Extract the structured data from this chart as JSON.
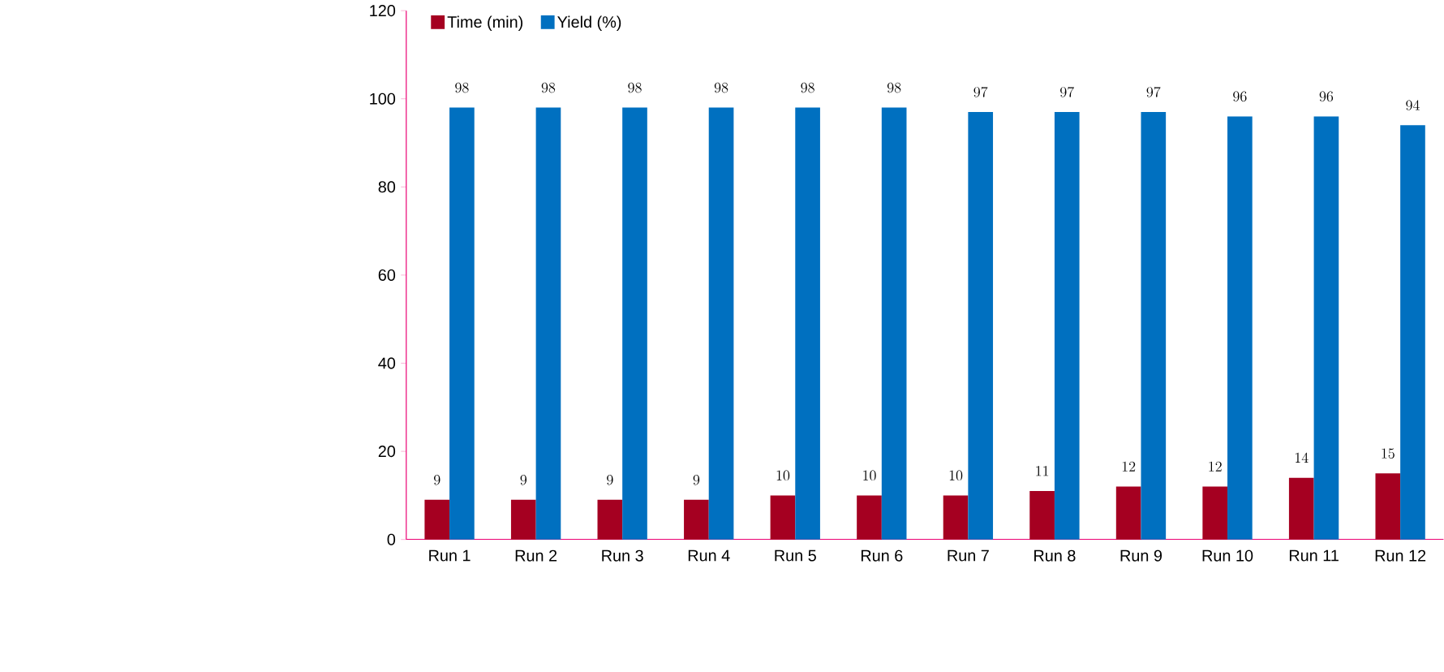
{
  "chart_data": {
    "type": "bar",
    "categories": [
      "Run 1",
      "Run 2",
      "Run 3",
      "Run 4",
      "Run 5",
      "Run 6",
      "Run 7",
      "Run 8",
      "Run 9",
      "Run 10",
      "Run 11",
      "Run 12"
    ],
    "series": [
      {
        "name": "Time (min)",
        "color": "#a50021",
        "values": [
          9,
          9,
          9,
          9,
          10,
          10,
          10,
          11,
          12,
          12,
          14,
          15
        ]
      },
      {
        "name": "Yield (%)",
        "color": "#0070c0",
        "values": [
          98,
          98,
          98,
          98,
          98,
          98,
          97,
          97,
          97,
          96,
          96,
          94
        ]
      }
    ],
    "ylim": [
      0,
      120
    ],
    "yticks": [
      0,
      20,
      40,
      60,
      80,
      100,
      120
    ],
    "data_labels": true,
    "legend": "top left",
    "grid": false
  }
}
